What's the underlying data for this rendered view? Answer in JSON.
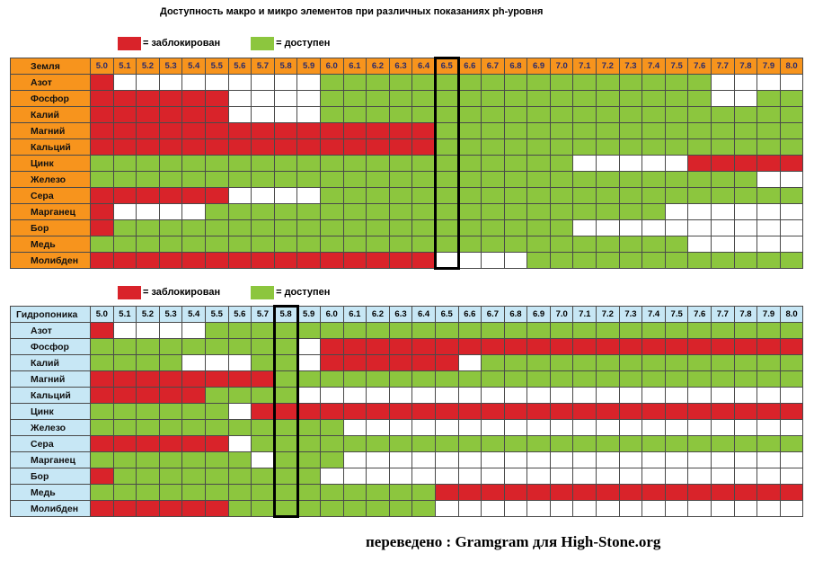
{
  "title": "Доступность макро и микро элементов при различных показаниях ph-уровня",
  "legend": {
    "blocked": "= заблокирован",
    "available": "= доступен"
  },
  "colors": {
    "blocked": "#d9232a",
    "available": "#8cc63e",
    "none": "#ffffff",
    "soil_header": "#f7941d",
    "hydro_header": "#c7e7f5"
  },
  "credit": "переведено : Gramgram для High-Stone.org",
  "chart_data": [
    {
      "type": "heatmap",
      "name": "Земля",
      "highlight": "6.5",
      "x": [
        "5.0",
        "5.1",
        "5.2",
        "5.3",
        "5.4",
        "5.5",
        "5.6",
        "5.7",
        "5.8",
        "5.9",
        "6.0",
        "6.1",
        "6.2",
        "6.3",
        "6.4",
        "6.5",
        "6.6",
        "6.7",
        "6.8",
        "6.9",
        "7.0",
        "7.1",
        "7.2",
        "7.3",
        "7.4",
        "7.5",
        "7.6",
        "7.7",
        "7.8",
        "7.9",
        "8.0"
      ],
      "rows": [
        {
          "label": "Азот",
          "values": "RNNNNNNNNNGGGGGGGGGGGGGGGGGNNNN"
        },
        {
          "label": "Фосфор",
          "values": "RRRRRRNNNNGGGGGGGGGGGGGGGGGNNGG"
        },
        {
          "label": "Калий",
          "values": "RRRRRRNNNNGGGGGGGGGGGGGGGGGGGGG"
        },
        {
          "label": "Магний",
          "values": "RRRRRRRRRRRRRRRGGGGGGGGGGGGGGGG"
        },
        {
          "label": "Кальций",
          "values": "RRRRRRRRRRRRRRRGGGGGGGGGGGGGGGG"
        },
        {
          "label": "Цинк",
          "values": "GGGGGGGGGGGGGGGGGGGGGNNNNNRRRRR"
        },
        {
          "label": "Железо",
          "values": "GGGGGGGGGGGGGGGGGGGGGGGGGGGGGNN"
        },
        {
          "label": "Сера",
          "values": "RRRRRRNNNNGGGGGGGGGGGGGGGGGGGGG"
        },
        {
          "label": "Марганец",
          "values": "RNNNNGGGGGGGGGGGGGGGGGGGGNNNNNN"
        },
        {
          "label": "Бор",
          "values": "RGGGGGGGGGGGGGGGGGGGGNNNNNNNNNN"
        },
        {
          "label": "Медь",
          "values": "GGGGGGGGGGGGGGGGGGGGGGGGGGNNNNN"
        },
        {
          "label": "Молибден",
          "values": "RRRRRRRRRRRRRRRNNNNGGGGGGGGGGGG"
        }
      ]
    },
    {
      "type": "heatmap",
      "name": "Гидропоника",
      "highlight": "5.8",
      "x": [
        "5.0",
        "5.1",
        "5.2",
        "5.3",
        "5.4",
        "5.5",
        "5.6",
        "5.7",
        "5.8",
        "5.9",
        "6.0",
        "6.1",
        "6.2",
        "6.3",
        "6.4",
        "6.5",
        "6.6",
        "6.7",
        "6.8",
        "6.9",
        "7.0",
        "7.1",
        "7.2",
        "7.3",
        "7.4",
        "7.5",
        "7.6",
        "7.7",
        "7.8",
        "7.9",
        "8.0"
      ],
      "rows": [
        {
          "label": "Азот",
          "values": "RNNNNGGGGGGGGGGGGGGGGGGGGGGGGGG"
        },
        {
          "label": "Фосфор",
          "values": "GGGGGGGGGNRRRRRRRRRRRRRRRRRRRRR"
        },
        {
          "label": "Калий",
          "values": "GGGGNNNGGNRRRRRRNGGGGGGGGGGGGGG"
        },
        {
          "label": "Магний",
          "values": "RRRRRRRRGGGGGGGGGGGGGGGGGGGGGGG"
        },
        {
          "label": "Кальций",
          "values": "RRRRRGGGGNNNNNNNNNNNNNNNNNNNNNN"
        },
        {
          "label": "Цинк",
          "values": "GGGGGGNRRRRRRRRRRRRRRRRRRRRRRRR"
        },
        {
          "label": "Железо",
          "values": "GGGGGGGGGGGNNNNNNNNNNNNNNNNNNNN"
        },
        {
          "label": "Сера",
          "values": "RRRRRRNGGGGGGGGGGGGGGGGGGGGGGGG"
        },
        {
          "label": "Марганец",
          "values": "GGGGGGGNGGGNNNNNNNNNNNNNNNNNNNN"
        },
        {
          "label": "Бор",
          "values": "RGGGGGGGGGNNNNNNNNNNNNNNNNNNNNN"
        },
        {
          "label": "Медь",
          "values": "GGGGGGGGGGGGGGGRRRRRRRRRRRRRRRR"
        },
        {
          "label": "Молибден",
          "values": "RRRRRRGGGGGGGGGNNNNNNNNNNNNNNNN"
        }
      ]
    }
  ]
}
